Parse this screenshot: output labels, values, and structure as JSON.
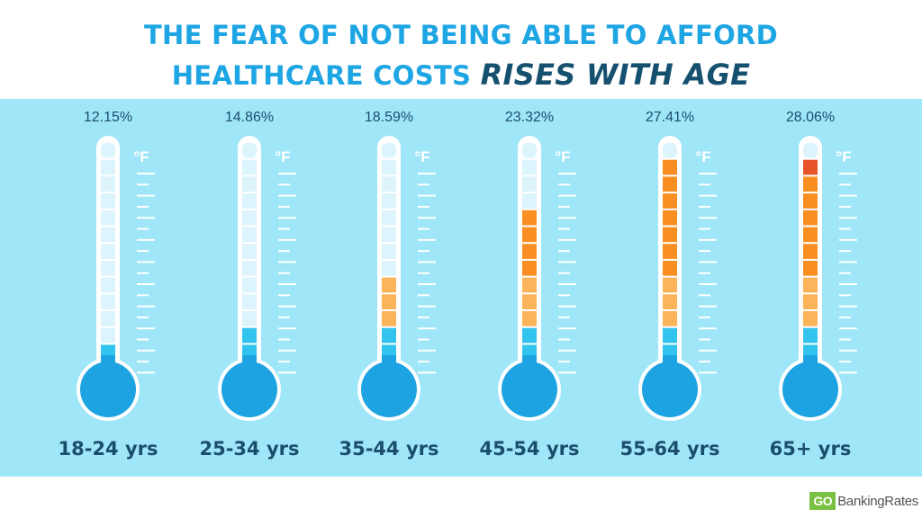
{
  "title": {
    "line1": "THE FEAR OF NOT BEING ABLE TO AFFORD",
    "line2_prefix": "HEALTHCARE COSTS ",
    "line2_emphasis": "RISES WITH AGE"
  },
  "colors": {
    "title": "#1ea5e3",
    "title_emphasis": "#15506f",
    "panel": "#9fe6f8",
    "bulb": "#1da3e2",
    "tube_outline": "#ffffff",
    "empty_segment": "#dcf4fb",
    "fill_blue": "#33c3ef",
    "fill_light_orange": "#fbb45a",
    "fill_orange": "#f98f22",
    "fill_top_red": "#e8542a",
    "label": "#1b4e6b",
    "tick": "#ffffff",
    "logo_green": "#7ac143",
    "logo_text": "#555555"
  },
  "chart_data": {
    "type": "bar",
    "style": "thermometer",
    "categories": [
      "18-24 yrs",
      "25-34 yrs",
      "35-44 yrs",
      "45-54 yrs",
      "55-64 yrs",
      "65+ yrs"
    ],
    "values": [
      12.15,
      14.86,
      18.59,
      23.32,
      27.41,
      28.06
    ],
    "value_labels": [
      "12.15%",
      "14.86%",
      "18.59%",
      "23.32%",
      "27.41%",
      "28.06%"
    ],
    "scale_symbol": "°F",
    "filled_segments": [
      1,
      2,
      5,
      9,
      12,
      12
    ],
    "top_segment_red": [
      false,
      false,
      false,
      false,
      false,
      true
    ],
    "total_segments": 13
  },
  "logo": {
    "part1": "GO",
    "part2": "BankingRates"
  }
}
